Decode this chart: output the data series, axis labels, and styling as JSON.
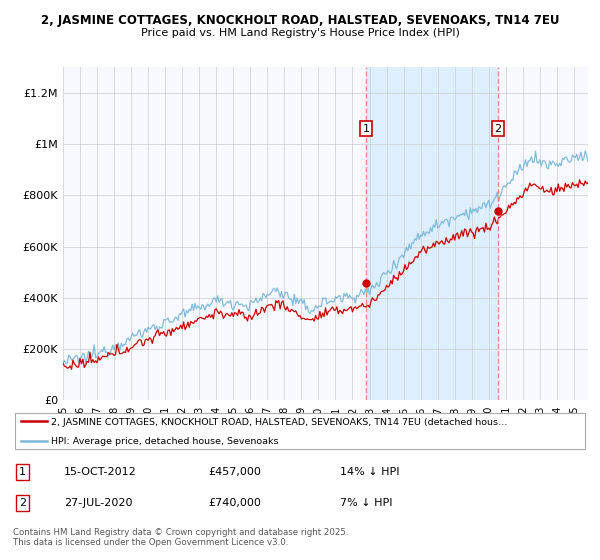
{
  "title_line1": "2, JASMINE COTTAGES, KNOCKHOLT ROAD, HALSTEAD, SEVENOAKS, TN14 7EU",
  "title_line2": "Price paid vs. HM Land Registry's House Price Index (HPI)",
  "ylabel_ticks": [
    "£0",
    "£200K",
    "£400K",
    "£600K",
    "£800K",
    "£1M",
    "£1.2M"
  ],
  "ytick_values": [
    0,
    200000,
    400000,
    600000,
    800000,
    1000000,
    1200000
  ],
  "ylim": [
    0,
    1300000
  ],
  "purchase1_date": "15-OCT-2012",
  "purchase1_price": 457000,
  "purchase1_hpi_diff": "14% ↓ HPI",
  "purchase2_date": "27-JUL-2020",
  "purchase2_price": 740000,
  "purchase2_hpi_diff": "7% ↓ HPI",
  "legend_line1": "2, JASMINE COTTAGES, KNOCKHOLT ROAD, HALSTEAD, SEVENOAKS, TN14 7EU (detached hous…",
  "legend_line2": "HPI: Average price, detached house, Sevenoaks",
  "footer": "Contains HM Land Registry data © Crown copyright and database right 2025.\nThis data is licensed under the Open Government Licence v3.0.",
  "property_color": "#cc0000",
  "hpi_color": "#7ab8d9",
  "vline_color": "#ff8888",
  "shade_color": "#ddeeff",
  "background_color": "#ffffff",
  "grid_color": "#cccccc"
}
